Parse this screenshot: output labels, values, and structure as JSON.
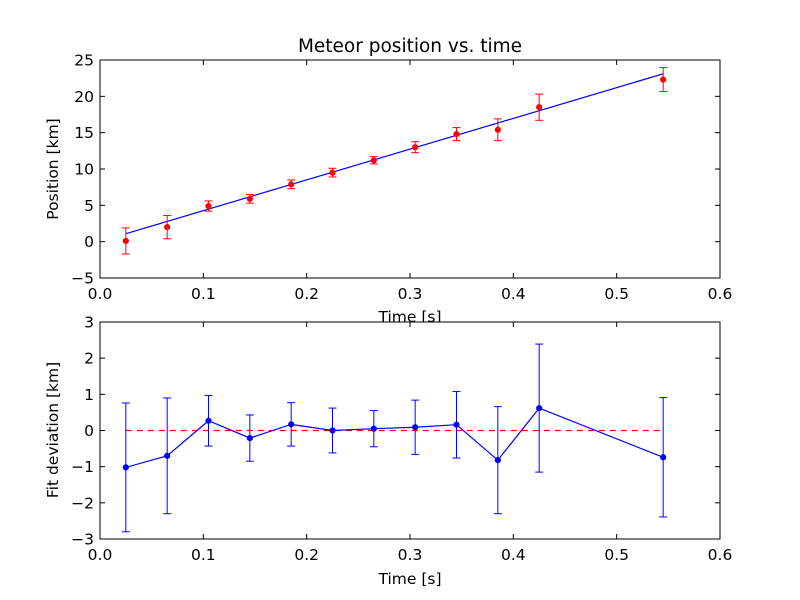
{
  "chart_data": [
    {
      "type": "scatter",
      "title": "Meteor position vs. time",
      "xlabel": "Time [s]",
      "ylabel": "Position [km]",
      "xlim": [
        0.0,
        0.6
      ],
      "ylim": [
        -5,
        25
      ],
      "xticks": [
        "0.0",
        "0.1",
        "0.2",
        "0.3",
        "0.4",
        "0.5",
        "0.6"
      ],
      "yticks": [
        "−5",
        "0",
        "5",
        "10",
        "15",
        "20",
        "25"
      ],
      "grid": false,
      "colors": {
        "points": "#ff0000",
        "errorbars": "#ff0000",
        "fit": "#0000ff"
      },
      "series": [
        {
          "kind": "errorbar-points",
          "x": [
            0.025,
            0.065,
            0.105,
            0.145,
            0.185,
            0.225,
            0.265,
            0.305,
            0.345,
            0.385,
            0.425,
            0.545
          ],
          "y": [
            0.1,
            2.0,
            4.9,
            5.9,
            7.9,
            9.5,
            11.2,
            13.0,
            14.8,
            15.4,
            18.5,
            22.3
          ],
          "yerr": [
            1.8,
            1.6,
            0.7,
            0.6,
            0.6,
            0.6,
            0.5,
            0.75,
            0.9,
            1.5,
            1.8,
            1.65
          ]
        },
        {
          "kind": "fit-line",
          "x": [
            0.025,
            0.545
          ],
          "y": [
            1.1,
            23.1
          ]
        }
      ]
    },
    {
      "type": "line",
      "title": "",
      "xlabel": "Time [s]",
      "ylabel": "Fit deviation [km]",
      "xlim": [
        0.0,
        0.6
      ],
      "ylim": [
        -3,
        3
      ],
      "xticks": [
        "0.0",
        "0.1",
        "0.2",
        "0.3",
        "0.4",
        "0.5",
        "0.6"
      ],
      "yticks": [
        "−3",
        "−2",
        "−1",
        "0",
        "1",
        "2",
        "3"
      ],
      "grid": false,
      "colors": {
        "line": "#0000ff",
        "zero_line": "#ff0000"
      },
      "reference_line": {
        "y": 0,
        "x": [
          0.025,
          0.545
        ],
        "style": "dashed"
      },
      "series": [
        {
          "x": [
            0.025,
            0.065,
            0.105,
            0.145,
            0.185,
            0.225,
            0.265,
            0.305,
            0.345,
            0.385,
            0.425,
            0.545
          ],
          "y": [
            -1.02,
            -0.7,
            0.27,
            -0.21,
            0.17,
            0.0,
            0.05,
            0.09,
            0.16,
            -0.82,
            0.62,
            -0.74
          ],
          "yerr": [
            1.78,
            1.6,
            0.7,
            0.64,
            0.6,
            0.62,
            0.5,
            0.75,
            0.92,
            1.48,
            1.77,
            1.65
          ]
        }
      ]
    }
  ]
}
